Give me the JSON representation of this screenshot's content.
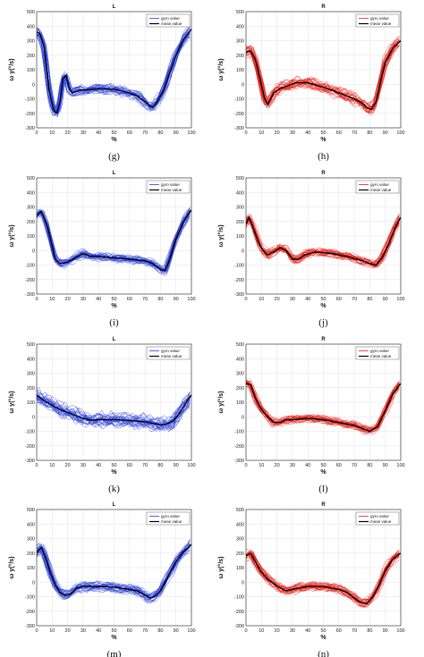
{
  "chart_data": [
    {
      "type": "line",
      "caption": "(g)",
      "title": "L",
      "xlabel": "%",
      "ylabel": "ω y(°/s)",
      "xlim": [
        0,
        100
      ],
      "ylim": [
        -300,
        500
      ],
      "xticks": [
        "0",
        "10",
        "20",
        "30",
        "40",
        "50",
        "60",
        "70",
        "80",
        "90",
        "100"
      ],
      "yticks": [
        "500",
        "400",
        "300",
        "200",
        "100",
        "0",
        "-100",
        "-200",
        "-300"
      ],
      "legend": [
        "gyro value",
        "mean value"
      ],
      "grid": true,
      "gyro_color": "#2a3fe0",
      "mean_color": "#000000",
      "spread": 38,
      "series": [
        {
          "name": "mean value",
          "x": [
            0,
            2,
            5,
            8,
            11,
            13,
            15,
            17,
            19,
            21,
            23,
            25,
            28,
            32,
            40,
            50,
            60,
            65,
            70,
            73,
            75,
            78,
            82,
            86,
            90,
            95,
            100
          ],
          "y": [
            360,
            350,
            250,
            -40,
            -180,
            -200,
            -120,
            40,
            60,
            -30,
            -60,
            -50,
            -40,
            -40,
            -30,
            -35,
            -60,
            -80,
            -120,
            -150,
            -160,
            -120,
            -40,
            80,
            200,
            310,
            380
          ]
        }
      ]
    },
    {
      "type": "line",
      "caption": "(h)",
      "title": "R",
      "xlabel": "%",
      "ylabel": "ω y(°/s)",
      "xlim": [
        0,
        100
      ],
      "ylim": [
        -300,
        500
      ],
      "xticks": [
        "0",
        "10",
        "20",
        "30",
        "40",
        "50",
        "60",
        "70",
        "80",
        "90",
        "100"
      ],
      "yticks": [
        "500",
        "400",
        "300",
        "200",
        "100",
        "0",
        "-100",
        "-200",
        "-300"
      ],
      "legend": [
        "gyro value",
        "mean value"
      ],
      "grid": true,
      "gyro_color": "#e8201a",
      "mean_color": "#000000",
      "spread": 45,
      "series": [
        {
          "name": "mean value",
          "x": [
            0,
            3,
            6,
            9,
            12,
            14,
            16,
            18,
            22,
            27,
            32,
            40,
            50,
            60,
            70,
            75,
            78,
            81,
            84,
            87,
            90,
            95,
            100
          ],
          "y": [
            220,
            230,
            170,
            40,
            -100,
            -140,
            -100,
            -60,
            -30,
            -10,
            10,
            10,
            -20,
            -60,
            -100,
            -130,
            -160,
            -175,
            -120,
            20,
            150,
            250,
            300
          ]
        }
      ]
    },
    {
      "type": "line",
      "caption": "(i)",
      "title": "L",
      "xlabel": "%",
      "ylabel": "ω y(°/s)",
      "xlim": [
        0,
        100
      ],
      "ylim": [
        -300,
        500
      ],
      "xticks": [
        "0",
        "10",
        "20",
        "30",
        "40",
        "50",
        "60",
        "70",
        "80",
        "90",
        "100"
      ],
      "yticks": [
        "500",
        "400",
        "300",
        "200",
        "100",
        "0",
        "-100",
        "-200",
        "-300"
      ],
      "legend": [
        "gyro value",
        "mean value"
      ],
      "grid": true,
      "gyro_color": "#2a3fe0",
      "mean_color": "#000000",
      "spread": 35,
      "series": [
        {
          "name": "mean value",
          "x": [
            0,
            3,
            6,
            9,
            12,
            15,
            20,
            25,
            30,
            35,
            40,
            50,
            60,
            70,
            75,
            80,
            83,
            86,
            90,
            95,
            100
          ],
          "y": [
            240,
            270,
            200,
            80,
            -60,
            -90,
            -80,
            -50,
            -20,
            -40,
            -40,
            -50,
            -60,
            -70,
            -90,
            -130,
            -140,
            -60,
            80,
            200,
            280
          ]
        }
      ]
    },
    {
      "type": "line",
      "caption": "(j)",
      "title": "R",
      "xlabel": "%",
      "ylabel": "ω y(°/s)",
      "xlim": [
        0,
        100
      ],
      "ylim": [
        -300,
        500
      ],
      "xticks": [
        "0",
        "10",
        "20",
        "30",
        "40",
        "50",
        "60",
        "70",
        "80",
        "90",
        "100"
      ],
      "yticks": [
        "500",
        "400",
        "300",
        "200",
        "100",
        "0",
        "-100",
        "-200",
        "-300"
      ],
      "legend": [
        "gyro value",
        "mean value"
      ],
      "grid": true,
      "gyro_color": "#e8201a",
      "mean_color": "#000000",
      "spread": 32,
      "series": [
        {
          "name": "mean value",
          "x": [
            0,
            2,
            5,
            8,
            11,
            14,
            18,
            22,
            26,
            30,
            34,
            38,
            45,
            55,
            65,
            75,
            80,
            84,
            88,
            92,
            96,
            100
          ],
          "y": [
            180,
            230,
            150,
            60,
            0,
            -30,
            -10,
            20,
            0,
            -60,
            -60,
            -30,
            -10,
            -20,
            -40,
            -70,
            -90,
            -100,
            -50,
            40,
            150,
            230
          ]
        }
      ]
    },
    {
      "type": "line",
      "caption": "(k)",
      "title": "L",
      "xlabel": "%",
      "ylabel": "ω y(°/s)",
      "xlim": [
        0,
        100
      ],
      "ylim": [
        -300,
        500
      ],
      "xticks": [
        "0",
        "10",
        "20",
        "30",
        "40",
        "50",
        "60",
        "70",
        "80",
        "90",
        "100"
      ],
      "yticks": [
        "500",
        "400",
        "300",
        "200",
        "100",
        "0",
        "-100",
        "-200",
        "-300"
      ],
      "legend": [
        "gyro value",
        "mean value"
      ],
      "grid": true,
      "gyro_color": "#2a3fe0",
      "mean_color": "#000000",
      "spread": 60,
      "series": [
        {
          "name": "mean value",
          "x": [
            0,
            5,
            10,
            15,
            20,
            25,
            30,
            35,
            40,
            50,
            60,
            70,
            75,
            80,
            84,
            88,
            92,
            96,
            100
          ],
          "y": [
            150,
            110,
            80,
            50,
            30,
            10,
            -10,
            -25,
            -20,
            -20,
            -25,
            -35,
            -45,
            -55,
            -50,
            -30,
            20,
            90,
            150
          ]
        }
      ]
    },
    {
      "type": "line",
      "caption": "(l)",
      "title": "R",
      "xlabel": "%",
      "ylabel": "ω y(°/s)",
      "xlim": [
        0,
        100
      ],
      "ylim": [
        -300,
        500
      ],
      "xticks": [
        "0",
        "10",
        "20",
        "30",
        "40",
        "50",
        "60",
        "70",
        "80",
        "90",
        "100"
      ],
      "yticks": [
        "500",
        "400",
        "300",
        "200",
        "100",
        "0",
        "-100",
        "-200",
        "-300"
      ],
      "legend": [
        "gyro value",
        "mean value"
      ],
      "grid": true,
      "gyro_color": "#e8201a",
      "mean_color": "#000000",
      "spread": 30,
      "series": [
        {
          "name": "mean value",
          "x": [
            0,
            3,
            6,
            10,
            14,
            18,
            22,
            26,
            30,
            40,
            50,
            60,
            70,
            75,
            80,
            85,
            90,
            95,
            100
          ],
          "y": [
            230,
            220,
            130,
            50,
            0,
            -40,
            -40,
            -20,
            -20,
            -10,
            -20,
            -40,
            -60,
            -80,
            -100,
            -70,
            40,
            160,
            230
          ]
        }
      ]
    },
    {
      "type": "line",
      "caption": "(m)",
      "title": "L",
      "xlabel": "%",
      "ylabel": "ω y(°/s)",
      "xlim": [
        0,
        100
      ],
      "ylim": [
        -300,
        500
      ],
      "xticks": [
        "0",
        "10",
        "20",
        "30",
        "40",
        "50",
        "60",
        "70",
        "80",
        "90",
        "100"
      ],
      "yticks": [
        "500",
        "400",
        "300",
        "200",
        "100",
        "0",
        "-100",
        "-200",
        "-300"
      ],
      "legend": [
        "gyro value",
        "mean value"
      ],
      "grid": true,
      "gyro_color": "#2a3fe0",
      "mean_color": "#000000",
      "spread": 35,
      "series": [
        {
          "name": "mean value",
          "x": [
            0,
            3,
            6,
            9,
            12,
            15,
            18,
            22,
            26,
            30,
            40,
            50,
            60,
            65,
            70,
            73,
            76,
            80,
            85,
            90,
            95,
            100
          ],
          "y": [
            200,
            240,
            160,
            60,
            -20,
            -70,
            -90,
            -80,
            -40,
            -30,
            -30,
            -35,
            -50,
            -60,
            -90,
            -110,
            -100,
            -60,
            40,
            140,
            210,
            260
          ]
        }
      ]
    },
    {
      "type": "line",
      "caption": "(n)",
      "title": "R",
      "xlabel": "%",
      "ylabel": "ω y(°/s)",
      "xlim": [
        0,
        100
      ],
      "ylim": [
        -300,
        500
      ],
      "xticks": [
        "0",
        "10",
        "20",
        "30",
        "40",
        "50",
        "60",
        "70",
        "80",
        "90",
        "100"
      ],
      "yticks": [
        "500",
        "400",
        "300",
        "200",
        "100",
        "0",
        "-100",
        "-200",
        "-300"
      ],
      "legend": [
        "gyro value",
        "mean value"
      ],
      "grid": true,
      "gyro_color": "#e8201a",
      "mean_color": "#000000",
      "spread": 35,
      "series": [
        {
          "name": "mean value",
          "x": [
            0,
            3,
            6,
            10,
            14,
            18,
            22,
            26,
            30,
            40,
            50,
            60,
            65,
            70,
            74,
            78,
            82,
            86,
            90,
            95,
            100
          ],
          "y": [
            180,
            200,
            140,
            70,
            20,
            -10,
            -40,
            -60,
            -50,
            -30,
            -30,
            -50,
            -70,
            -110,
            -140,
            -150,
            -100,
            -20,
            80,
            160,
            200
          ]
        }
      ]
    }
  ]
}
